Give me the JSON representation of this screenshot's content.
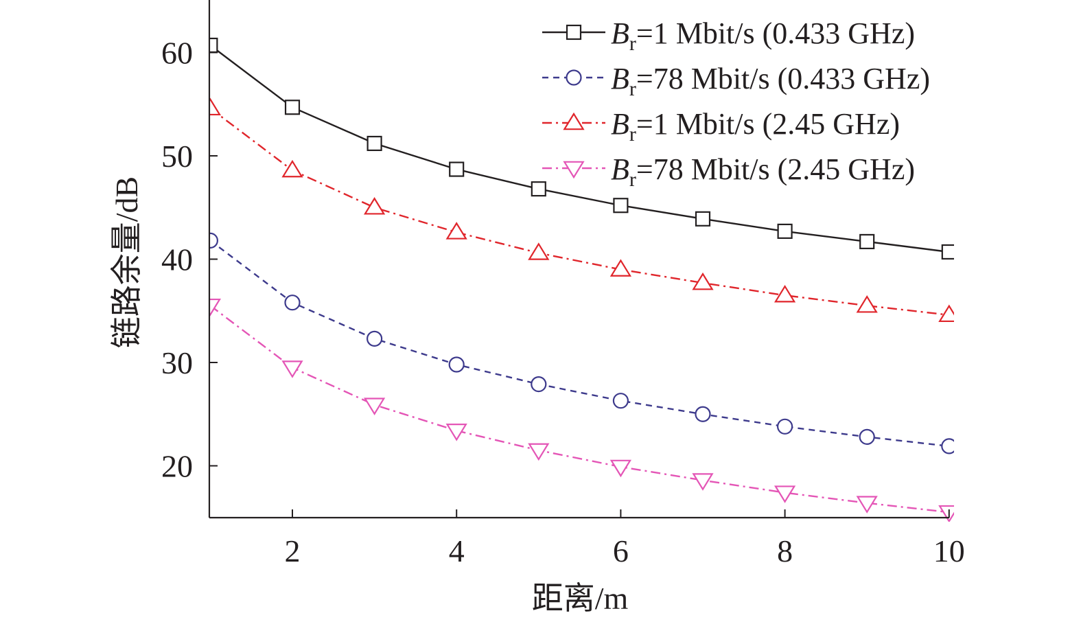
{
  "chart_data": {
    "type": "line",
    "xlabel": "距离/m",
    "ylabel": "链路余量/dB",
    "xlim": [
      1,
      10
    ],
    "ylim": [
      15,
      65
    ],
    "x_ticks": [
      2,
      4,
      6,
      8,
      10
    ],
    "y_ticks": [
      20,
      30,
      40,
      50,
      60
    ],
    "x": [
      1,
      2,
      3,
      4,
      5,
      6,
      7,
      8,
      9,
      10
    ],
    "legend_position": "top-right",
    "grid": false,
    "series": [
      {
        "name": "Br=1 Mbit/s (0.433 GHz)",
        "label_main": "B",
        "label_sub": "r",
        "label_rest": "=1 Mbit/s (0.433 GHz)",
        "color": "#231f20",
        "dash": "solid",
        "marker": "square",
        "values": [
          60.7,
          54.7,
          51.2,
          48.7,
          46.8,
          45.2,
          43.9,
          42.7,
          41.7,
          40.7
        ]
      },
      {
        "name": "Br=78 Mbit/s (0.433 GHz)",
        "label_main": "B",
        "label_sub": "r",
        "label_rest": "=78 Mbit/s (0.433 GHz)",
        "color": "#3d3a8c",
        "dash": "dash",
        "marker": "circle",
        "values": [
          41.8,
          35.8,
          32.3,
          29.8,
          27.9,
          26.3,
          25.0,
          23.8,
          22.8,
          21.9
        ]
      },
      {
        "name": "Br=1 Mbit/s (2.45 GHz)",
        "label_main": "B",
        "label_sub": "r",
        "label_rest": "=1 Mbit/s (2.45 GHz)",
        "color": "#e0252b",
        "dash": "dashdot",
        "marker": "triangle-up",
        "values": [
          54.6,
          48.6,
          45.0,
          42.6,
          40.6,
          39.0,
          37.7,
          36.5,
          35.5,
          34.6
        ]
      },
      {
        "name": "Br=78 Mbit/s (2.45 GHz)",
        "label_main": "B",
        "label_sub": "r",
        "label_rest": "=78 Mbit/s (2.45 GHz)",
        "color": "#e455b6",
        "dash": "dashdot",
        "marker": "triangle-down",
        "values": [
          35.5,
          29.5,
          25.9,
          23.4,
          21.5,
          19.9,
          18.6,
          17.4,
          16.4,
          15.5
        ]
      }
    ]
  }
}
